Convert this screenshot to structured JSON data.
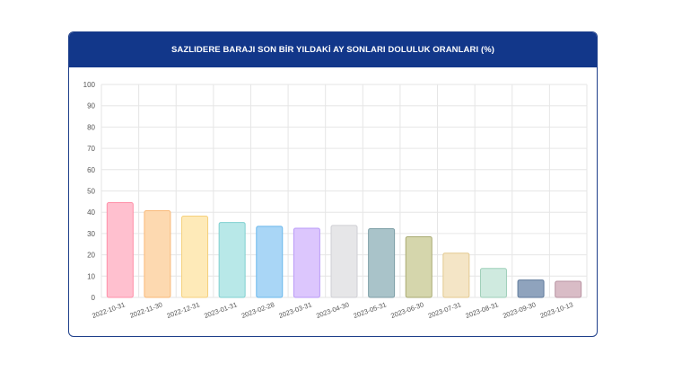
{
  "card": {
    "title": "SAZLIDERE BARAJI SON BİR YILDAKİ AY SONLARI DOLULUK ORANLARI (%)"
  },
  "colors": {
    "header": "#12378a",
    "grid": "#e6e6e6",
    "tick_text": "#555555"
  },
  "chart_data": {
    "type": "bar",
    "title": "SAZLIDERE BARAJI SON BİR YILDAKİ AY SONLARI DOLULUK ORANLARI (%)",
    "xlabel": "",
    "ylabel": "",
    "ylim": [
      0,
      100
    ],
    "yticks": [
      0,
      10,
      20,
      30,
      40,
      50,
      60,
      70,
      80,
      90,
      100
    ],
    "grid": true,
    "legend": "none",
    "categories": [
      "2022-10-31",
      "2022-11-30",
      "2022-12-31",
      "2023-01-31",
      "2023-02-28",
      "2023-03-31",
      "2023-04-30",
      "2023-05-31",
      "2023-06-30",
      "2023-07-31",
      "2023-08-31",
      "2023-09-30",
      "2023-10-13"
    ],
    "values": [
      44.5,
      40.7,
      38.2,
      35.2,
      33.4,
      32.5,
      33.8,
      32.3,
      28.5,
      20.8,
      13.6,
      8.2,
      7.6
    ],
    "fill_colors": [
      "#ffc0cf",
      "#fdd9b0",
      "#feeab8",
      "#b8e8e8",
      "#a9d6f6",
      "#dcc6fd",
      "#e6e6e8",
      "#a9c3c9",
      "#d5d6ac",
      "#f4e5c6",
      "#cfeadf",
      "#8fa3bd",
      "#d9bcc6"
    ],
    "stroke_colors": [
      "#ff8fa8",
      "#f9b978",
      "#f5d07c",
      "#7fd0d0",
      "#6ab8ec",
      "#b99af8",
      "#cfcfd4",
      "#7d9ea6",
      "#a8aa72",
      "#e3c98f",
      "#9ecfb9",
      "#5f7a9b",
      "#b893a2"
    ]
  }
}
